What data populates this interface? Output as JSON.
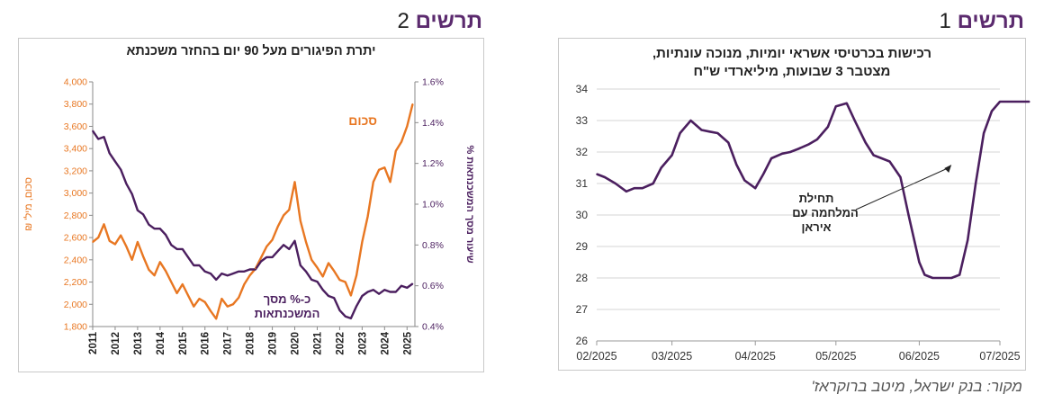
{
  "headings": {
    "fig1": {
      "word": "תרשים",
      "num": "1"
    },
    "fig2": {
      "word": "תרשים",
      "num": "2"
    }
  },
  "source": "מקור: בנק ישראל, מיטב ברוקראז'",
  "chart_data": [
    {
      "type": "line",
      "title_line1": "רכישות בכרטיסי אשראי יומיות, מנוכה עונתיות,",
      "title_line2": "מצטבר 3 שבועות, מיליארדי ש\"ח",
      "ylim": [
        26,
        34
      ],
      "yticks": [
        "26",
        "27",
        "28",
        "29",
        "30",
        "31",
        "32",
        "33",
        "34"
      ],
      "xtick_labels": [
        "02/2025",
        "03/2025",
        "04/2025",
        "05/2025",
        "06/2025",
        "07/2025"
      ],
      "xtick_dates": [
        "2025-02-01",
        "2025-03-01",
        "2025-04-01",
        "2025-05-01",
        "2025-06-01",
        "2025-07-01"
      ],
      "grid": true,
      "color": "#4b1f5f",
      "annotation": {
        "lines": [
          "תחילת",
          "המלחמה  עם",
          "איראן"
        ],
        "date": "2025-06-13",
        "value": 31.6
      },
      "series": [
        {
          "x": [
            "2025-02-01",
            "2025-02-04",
            "2025-02-08",
            "2025-02-12",
            "2025-02-15",
            "2025-02-18",
            "2025-02-22",
            "2025-02-25",
            "2025-03-01",
            "2025-03-04",
            "2025-03-08",
            "2025-03-12",
            "2025-03-15",
            "2025-03-18",
            "2025-03-22",
            "2025-03-25",
            "2025-03-28",
            "2025-04-01",
            "2025-04-04",
            "2025-04-07",
            "2025-04-11",
            "2025-04-14",
            "2025-04-17",
            "2025-04-21",
            "2025-04-24",
            "2025-04-28",
            "2025-05-01",
            "2025-05-05",
            "2025-05-08",
            "2025-05-12",
            "2025-05-15",
            "2025-05-18",
            "2025-05-21",
            "2025-05-25",
            "2025-05-28",
            "2025-06-01",
            "2025-06-03",
            "2025-06-06",
            "2025-06-09",
            "2025-06-13",
            "2025-06-16",
            "2025-06-19",
            "2025-06-22",
            "2025-06-25",
            "2025-06-28",
            "2025-07-01",
            "2025-07-04",
            "2025-07-07",
            "2025-07-10",
            "2025-07-12"
          ],
          "values": [
            31.3,
            31.2,
            31.0,
            30.75,
            30.85,
            30.85,
            31.0,
            31.5,
            31.9,
            32.6,
            33.0,
            32.7,
            32.65,
            32.6,
            32.3,
            31.6,
            31.1,
            30.85,
            31.3,
            31.8,
            31.95,
            32.0,
            32.1,
            32.25,
            32.4,
            32.8,
            33.45,
            33.55,
            33.0,
            32.3,
            31.9,
            31.8,
            31.7,
            31.2,
            30.0,
            28.5,
            28.1,
            28.0,
            28.0,
            28.0,
            28.1,
            29.2,
            31.0,
            32.6,
            33.3,
            33.6,
            33.6,
            33.6,
            33.6,
            33.6
          ]
        }
      ]
    },
    {
      "type": "line",
      "title": "יתרת הפיגורים מעל 90 יום בהחזר משכנתא",
      "ylabel_left": "סכום, מיל' ₪",
      "ylabel_right": "שיעור מסך המשכנתאות %",
      "ylim_left": [
        1800,
        4000
      ],
      "ylim_right": [
        0.4,
        1.6
      ],
      "yticks_left": [
        "1,800",
        "2,000",
        "2,200",
        "2,400",
        "2,600",
        "2,800",
        "3,000",
        "3,200",
        "3,400",
        "3,600",
        "3,800",
        "4,000"
      ],
      "yticks_right": [
        "0.4%",
        "0.6%",
        "0.8%",
        "1.0%",
        "1.2%",
        "1.4%",
        "1.6%"
      ],
      "xticks": [
        "2011",
        "2012",
        "2013",
        "2014",
        "2015",
        "2016",
        "2017",
        "2018",
        "2019",
        "2020",
        "2021",
        "2022",
        "2023",
        "2024",
        "2025"
      ],
      "grid": false,
      "series": [
        {
          "name": "סכום",
          "axis": "left",
          "color": "#e87722",
          "x": [
            2011.0,
            2011.25,
            2011.5,
            2011.75,
            2012.0,
            2012.25,
            2012.5,
            2012.75,
            2013.0,
            2013.25,
            2013.5,
            2013.75,
            2014.0,
            2014.25,
            2014.5,
            2014.75,
            2015.0,
            2015.25,
            2015.5,
            2015.75,
            2016.0,
            2016.25,
            2016.5,
            2016.75,
            2017.0,
            2017.25,
            2017.5,
            2017.75,
            2018.0,
            2018.25,
            2018.5,
            2018.75,
            2019.0,
            2019.25,
            2019.5,
            2019.75,
            2020.0,
            2020.25,
            2020.5,
            2020.75,
            2021.0,
            2021.25,
            2021.5,
            2021.75,
            2022.0,
            2022.25,
            2022.5,
            2022.75,
            2023.0,
            2023.25,
            2023.5,
            2023.75,
            2024.0,
            2024.25,
            2024.5,
            2024.75,
            2025.0,
            2025.25
          ],
          "values": [
            2560,
            2600,
            2720,
            2570,
            2540,
            2620,
            2520,
            2400,
            2560,
            2430,
            2310,
            2260,
            2380,
            2300,
            2200,
            2100,
            2180,
            2080,
            1980,
            2050,
            2020,
            1940,
            1870,
            2050,
            1980,
            2000,
            2060,
            2180,
            2260,
            2320,
            2420,
            2520,
            2580,
            2700,
            2800,
            2850,
            3100,
            2750,
            2560,
            2400,
            2330,
            2250,
            2370,
            2300,
            2220,
            2200,
            2080,
            2260,
            2560,
            2790,
            3100,
            3210,
            3230,
            3100,
            3380,
            3460,
            3600,
            3800
          ]
        },
        {
          "name": "כ-% מסך המשכנתאות",
          "axis": "right",
          "color": "#4b1f5f",
          "x": [
            2011.0,
            2011.25,
            2011.5,
            2011.75,
            2012.0,
            2012.25,
            2012.5,
            2012.75,
            2013.0,
            2013.25,
            2013.5,
            2013.75,
            2014.0,
            2014.25,
            2014.5,
            2014.75,
            2015.0,
            2015.25,
            2015.5,
            2015.75,
            2016.0,
            2016.25,
            2016.5,
            2016.75,
            2017.0,
            2017.25,
            2017.5,
            2017.75,
            2018.0,
            2018.25,
            2018.5,
            2018.75,
            2019.0,
            2019.25,
            2019.5,
            2019.75,
            2020.0,
            2020.25,
            2020.5,
            2020.75,
            2021.0,
            2021.25,
            2021.5,
            2021.75,
            2022.0,
            2022.25,
            2022.5,
            2022.75,
            2023.0,
            2023.25,
            2023.5,
            2023.75,
            2024.0,
            2024.25,
            2024.5,
            2024.75,
            2025.0,
            2025.25
          ],
          "values": [
            1.36,
            1.32,
            1.33,
            1.25,
            1.21,
            1.17,
            1.1,
            1.05,
            0.97,
            0.95,
            0.9,
            0.88,
            0.88,
            0.85,
            0.8,
            0.78,
            0.78,
            0.74,
            0.7,
            0.7,
            0.67,
            0.66,
            0.63,
            0.66,
            0.65,
            0.66,
            0.67,
            0.67,
            0.68,
            0.68,
            0.72,
            0.74,
            0.74,
            0.77,
            0.8,
            0.78,
            0.82,
            0.7,
            0.67,
            0.63,
            0.62,
            0.58,
            0.55,
            0.54,
            0.48,
            0.45,
            0.44,
            0.5,
            0.55,
            0.57,
            0.58,
            0.56,
            0.58,
            0.57,
            0.57,
            0.6,
            0.59,
            0.61
          ]
        }
      ],
      "series_labels": {
        "amount": "סכום",
        "pct_line1": "כ-% מסך",
        "pct_line2": "המשכנתאות"
      }
    }
  ]
}
